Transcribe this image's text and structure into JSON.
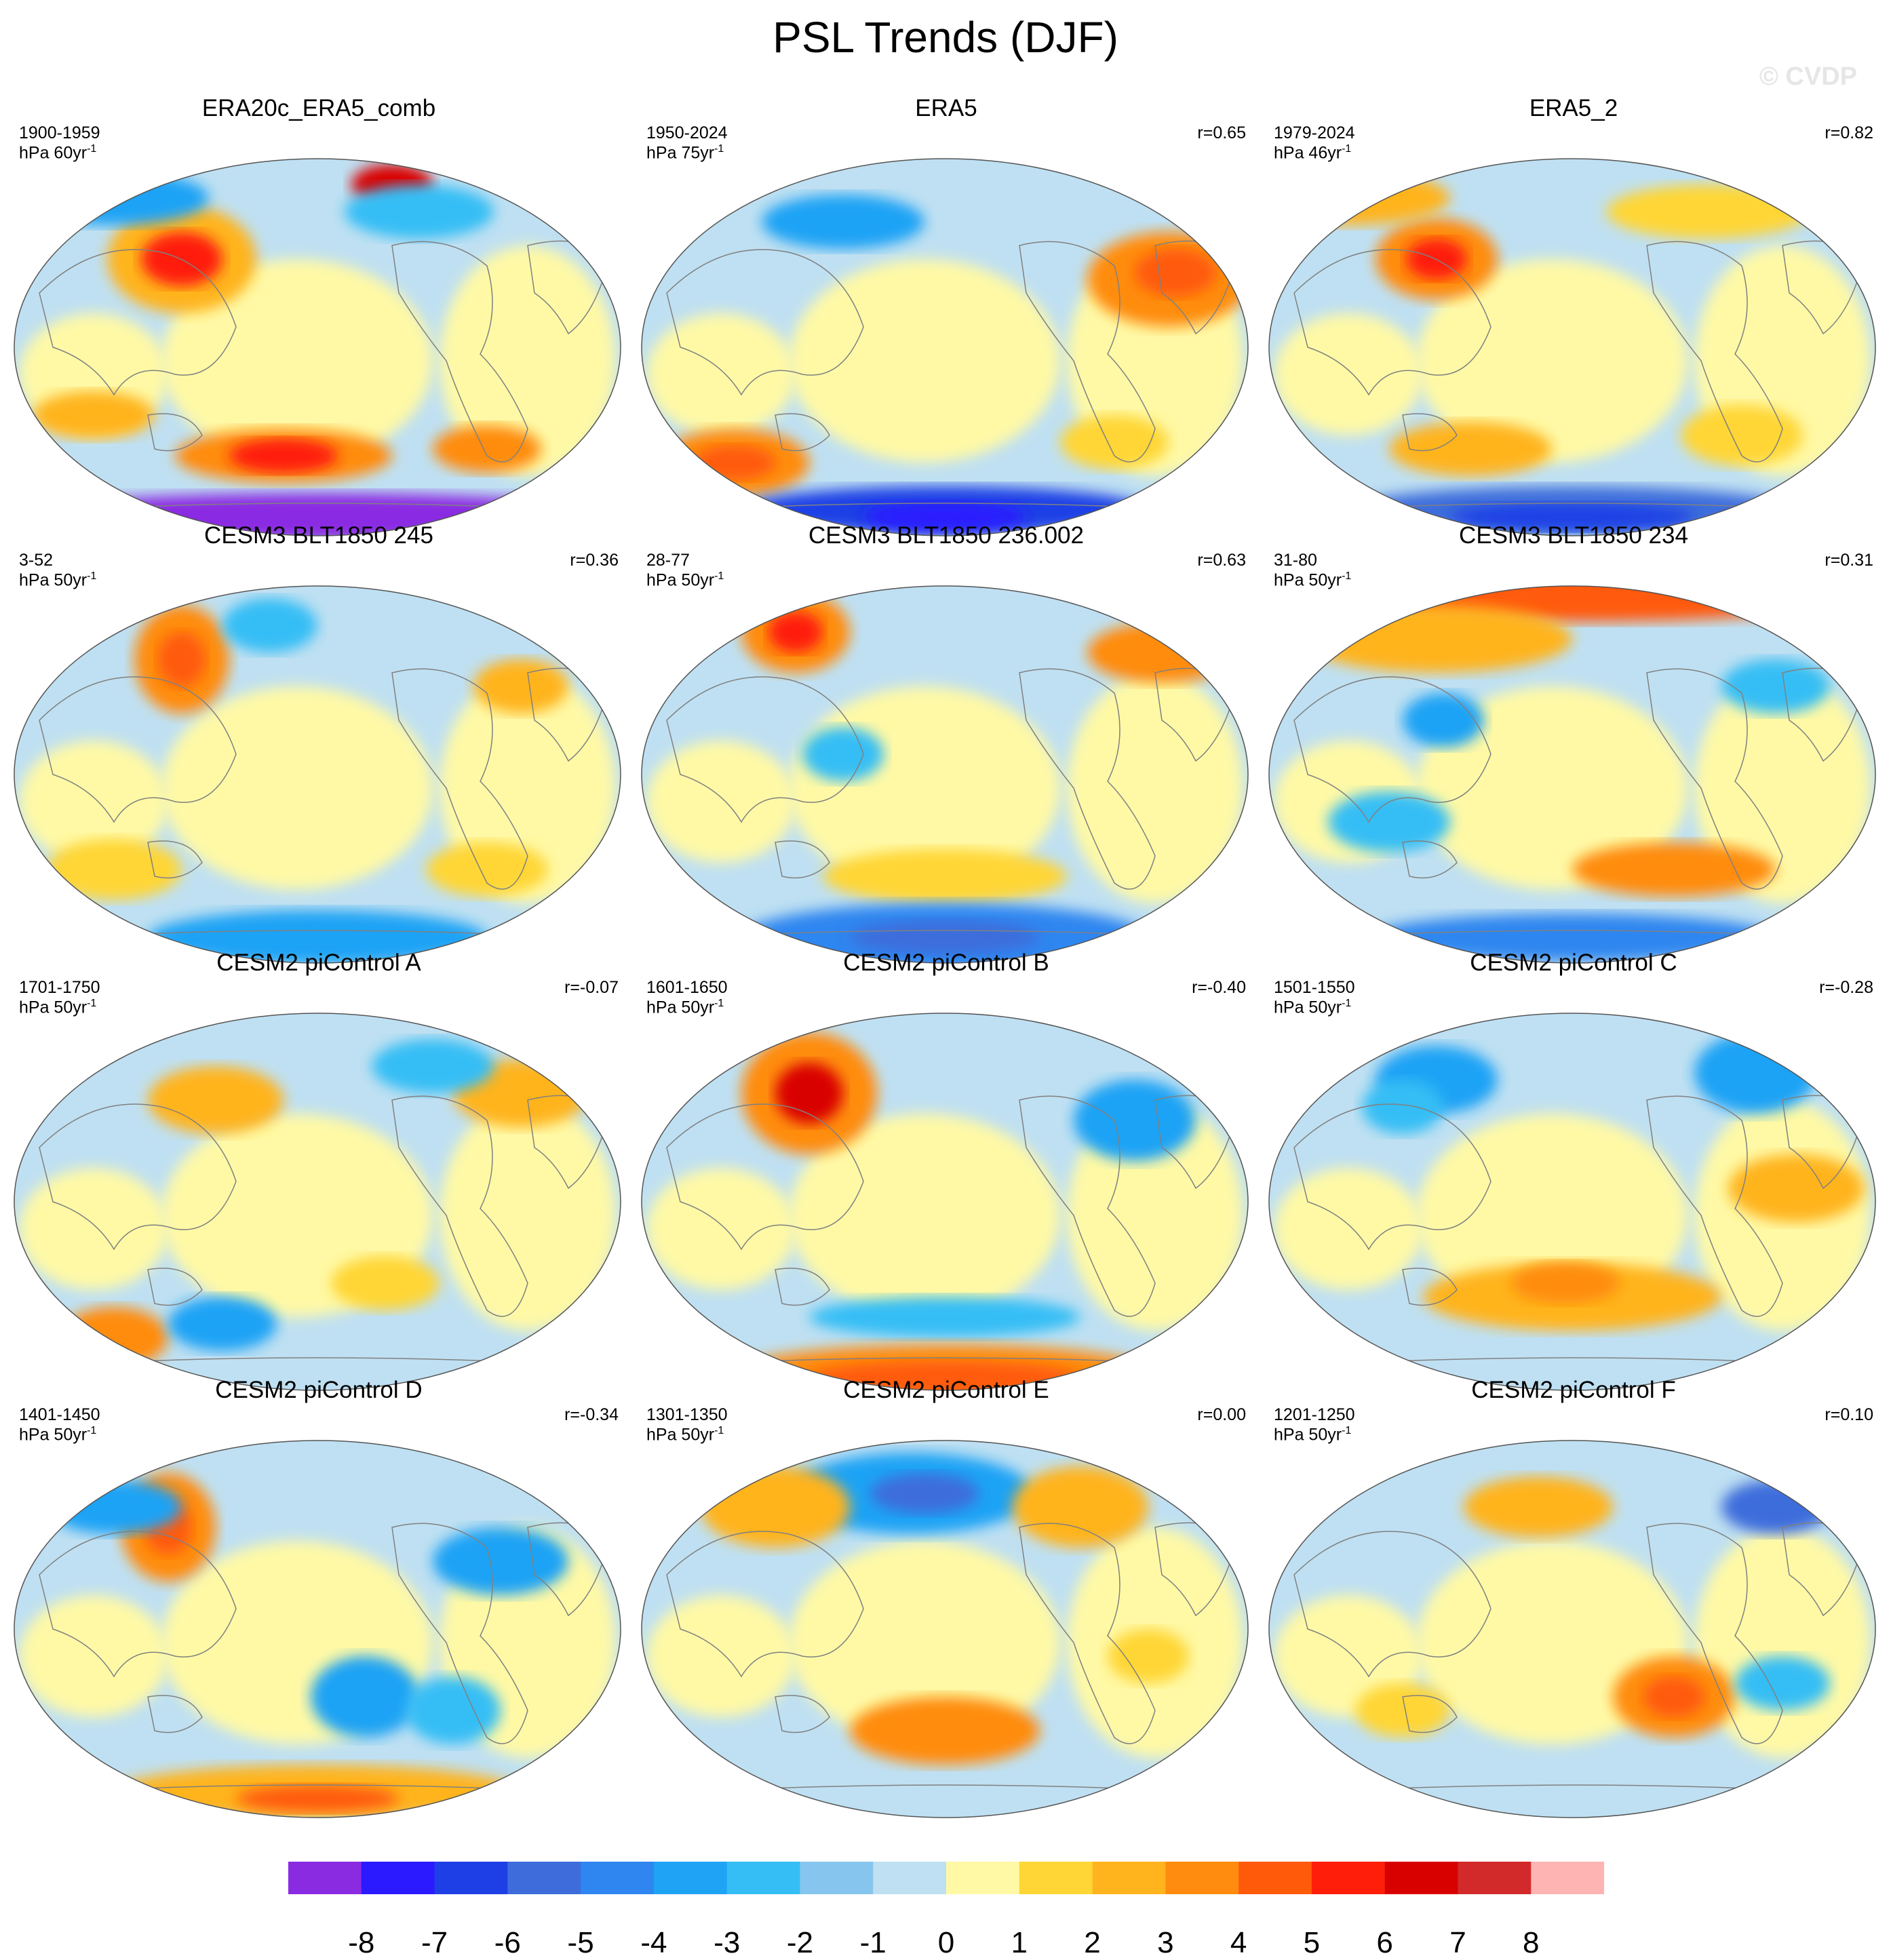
{
  "title": "PSL Trends (DJF)",
  "watermark": "© CVDP",
  "panels": [
    {
      "title": "ERA20c_ERA5_comb",
      "period": "1900-1959",
      "units": "hPa 60yr",
      "units_exp": "-1",
      "r": ""
    },
    {
      "title": "ERA5",
      "period": "1950-2024",
      "units": "hPa 75yr",
      "units_exp": "-1",
      "r": "r=0.65"
    },
    {
      "title": "ERA5_2",
      "period": "1979-2024",
      "units": "hPa 46yr",
      "units_exp": "-1",
      "r": "r=0.82"
    },
    {
      "title": "CESM3 BLT1850 245",
      "period": "3-52",
      "units": "hPa 50yr",
      "units_exp": "-1",
      "r": "r=0.36"
    },
    {
      "title": "CESM3 BLT1850 236.002",
      "period": "28-77",
      "units": "hPa 50yr",
      "units_exp": "-1",
      "r": "r=0.63"
    },
    {
      "title": "CESM3 BLT1850 234",
      "period": "31-80",
      "units": "hPa 50yr",
      "units_exp": "-1",
      "r": "r=0.31"
    },
    {
      "title": "CESM2 piControl A",
      "period": "1701-1750",
      "units": "hPa 50yr",
      "units_exp": "-1",
      "r": "r=-0.07"
    },
    {
      "title": "CESM2 piControl B",
      "period": "1601-1650",
      "units": "hPa 50yr",
      "units_exp": "-1",
      "r": "r=-0.40"
    },
    {
      "title": "CESM2 piControl C",
      "period": "1501-1550",
      "units": "hPa 50yr",
      "units_exp": "-1",
      "r": "r=-0.28"
    },
    {
      "title": "CESM2 piControl D",
      "period": "1401-1450",
      "units": "hPa 50yr",
      "units_exp": "-1",
      "r": "r=-0.34"
    },
    {
      "title": "CESM2 piControl E",
      "period": "1301-1350",
      "units": "hPa 50yr",
      "units_exp": "-1",
      "r": "r=0.00"
    },
    {
      "title": "CESM2 piControl F",
      "period": "1201-1250",
      "units": "hPa 50yr",
      "units_exp": "-1",
      "r": "r=0.10"
    }
  ],
  "colorbar": {
    "labels": [
      "-8",
      "-7",
      "-6",
      "-5",
      "-4",
      "-3",
      "-2",
      "-1",
      "0",
      "1",
      "2",
      "3",
      "4",
      "5",
      "6",
      "7",
      "8"
    ],
    "colors": [
      "#8A2BE2",
      "#2B1AFF",
      "#1F3FE6",
      "#3E6DDB",
      "#2F86F0",
      "#1FA3F5",
      "#35BEF5",
      "#86C6EE",
      "#BFE0F2",
      "#FFF9A6",
      "#FFD635",
      "#FFB41E",
      "#FF8C0F",
      "#FF5A0A",
      "#FF1E0A",
      "#D90000",
      "#D22A2A",
      "#FFB4B4"
    ],
    "base_map_color": "#BFE0F2",
    "coast_color": "#808080"
  }
}
